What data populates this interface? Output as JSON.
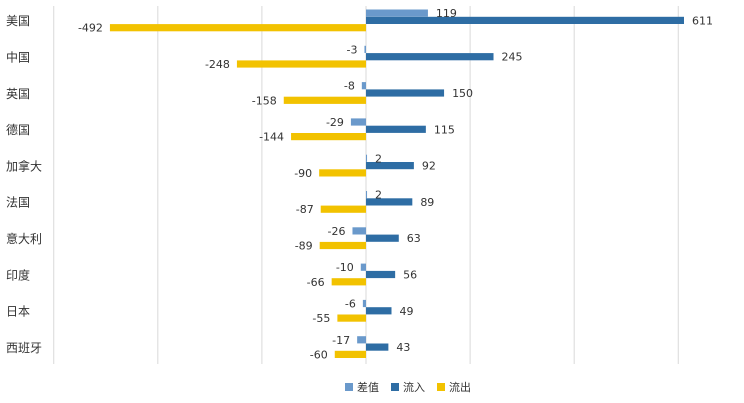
{
  "chart_data": {
    "type": "bar",
    "orientation": "horizontal",
    "categories": [
      "美国",
      "中国",
      "英国",
      "德国",
      "加拿大",
      "法国",
      "意大利",
      "印度",
      "日本",
      "西班牙"
    ],
    "series": [
      {
        "name": "差值",
        "color": "#6A99CB",
        "values": [
          119,
          -3,
          -8,
          -29,
          2,
          2,
          -26,
          -10,
          -6,
          -17
        ]
      },
      {
        "name": "流入",
        "color": "#2E6DA4",
        "values": [
          611,
          245,
          150,
          115,
          92,
          89,
          63,
          56,
          49,
          43
        ]
      },
      {
        "name": "流出",
        "color": "#F2C200",
        "values": [
          -492,
          -248,
          -158,
          -144,
          -90,
          -87,
          -89,
          -66,
          -55,
          -60
        ]
      }
    ],
    "xlim": [
      -600,
      600
    ],
    "grid": true,
    "legend_position": "bottom"
  }
}
